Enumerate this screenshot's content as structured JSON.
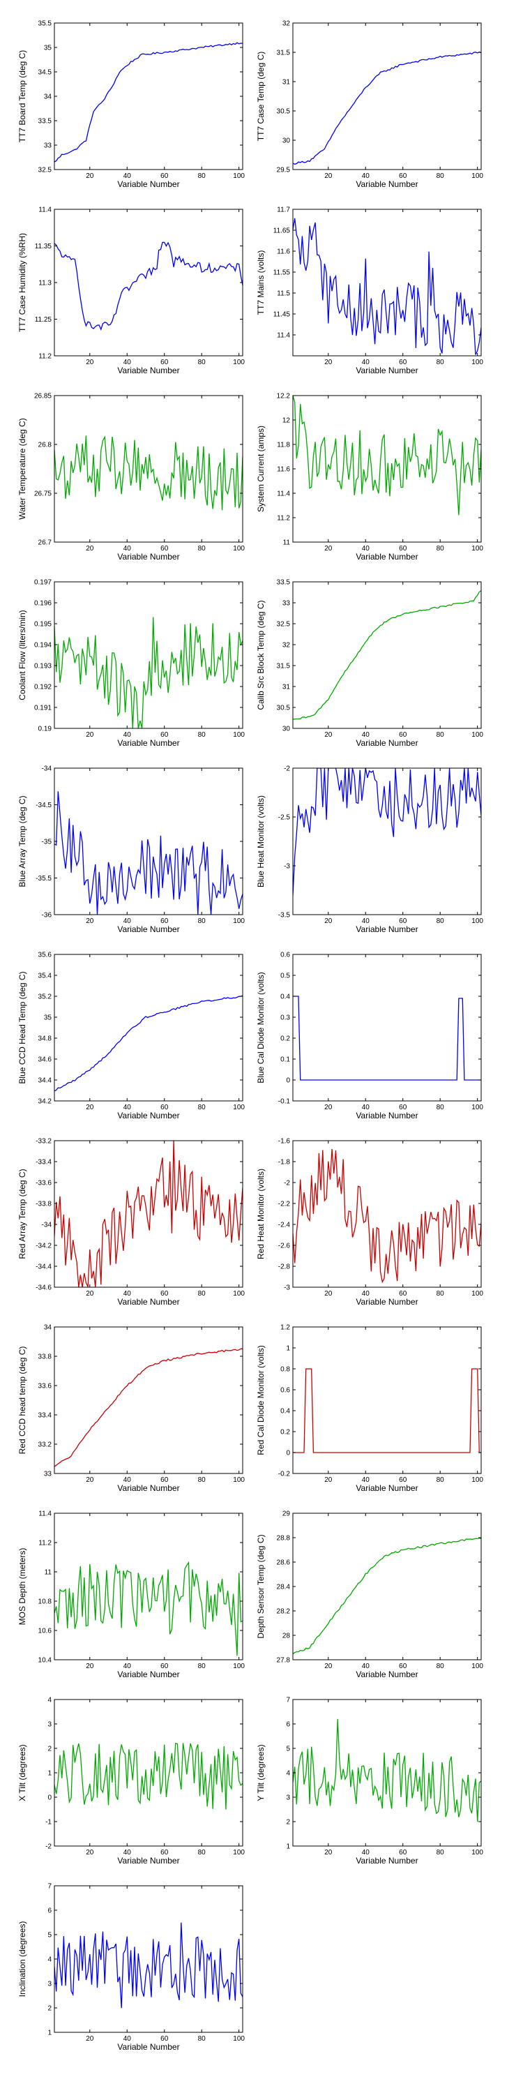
{
  "figure": {
    "xlabel": "Variable Number"
  },
  "colors": {
    "blue": "#0000ff",
    "green": "#00aa00",
    "red": "#cc0000",
    "axis": "#000000"
  },
  "chart_data": [
    {
      "type": "line",
      "ylabel": "TT7 Board Temp (deg C)",
      "xlim": [
        1,
        102
      ],
      "ylim": [
        32.5,
        35.5
      ],
      "xticks": [
        20,
        40,
        60,
        80,
        100
      ],
      "yticks": [
        "32.5",
        "33",
        "33.5",
        "34",
        "34.5",
        "35",
        "35.5"
      ],
      "color": "blue",
      "style": "smooth",
      "anchors": [
        [
          1,
          32.65
        ],
        [
          5,
          32.8
        ],
        [
          12,
          32.9
        ],
        [
          18,
          33.1
        ],
        [
          22,
          33.7
        ],
        [
          27,
          33.9
        ],
        [
          32,
          34.2
        ],
        [
          36,
          34.5
        ],
        [
          42,
          34.7
        ],
        [
          48,
          34.85
        ],
        [
          60,
          34.9
        ],
        [
          80,
          35.0
        ],
        [
          102,
          35.1
        ]
      ]
    },
    {
      "type": "line",
      "ylabel": "TT7 Case Temp (deg C)",
      "xlim": [
        1,
        102
      ],
      "ylim": [
        29.5,
        32
      ],
      "xticks": [
        20,
        40,
        60,
        80,
        100
      ],
      "yticks": [
        "29.5",
        "30",
        "30.5",
        "31",
        "31.5",
        "32"
      ],
      "color": "blue",
      "style": "smooth",
      "anchors": [
        [
          1,
          29.6
        ],
        [
          10,
          29.65
        ],
        [
          18,
          29.85
        ],
        [
          25,
          30.25
        ],
        [
          32,
          30.55
        ],
        [
          40,
          30.9
        ],
        [
          48,
          31.15
        ],
        [
          60,
          31.3
        ],
        [
          80,
          31.42
        ],
        [
          102,
          31.5
        ]
      ]
    },
    {
      "type": "line",
      "ylabel": "TT7 Case Humidity (%RH)",
      "xlim": [
        1,
        102
      ],
      "ylim": [
        11.2,
        11.4
      ],
      "xticks": [
        20,
        40,
        60,
        80,
        100
      ],
      "yticks": [
        "11.2",
        "11.25",
        "11.3",
        "11.35",
        "11.4"
      ],
      "color": "blue",
      "style": "step",
      "anchors": [
        [
          1,
          11.35
        ],
        [
          5,
          11.34
        ],
        [
          8,
          11.33
        ],
        [
          12,
          11.33
        ],
        [
          14,
          11.3
        ],
        [
          17,
          11.25
        ],
        [
          20,
          11.24
        ],
        [
          30,
          11.24
        ],
        [
          33,
          11.25
        ],
        [
          36,
          11.28
        ],
        [
          40,
          11.29
        ],
        [
          44,
          11.3
        ],
        [
          50,
          11.31
        ],
        [
          55,
          11.32
        ],
        [
          60,
          11.34
        ],
        [
          70,
          11.33
        ],
        [
          80,
          11.32
        ],
        [
          100,
          11.32
        ],
        [
          102,
          11.3
        ]
      ]
    },
    {
      "type": "line",
      "ylabel": "TT7 Mains  (volts)",
      "xlim": [
        1,
        102
      ],
      "ylim": [
        11.35,
        11.7
      ],
      "xticks": [
        20,
        40,
        60,
        80,
        100
      ],
      "yticks": [
        "11.4",
        "11.45",
        "11.5",
        "11.55",
        "11.6",
        "11.65",
        "11.7"
      ],
      "color": "blue",
      "style": "noisy",
      "anchors": [
        [
          1,
          11.6
        ],
        [
          8,
          11.6
        ],
        [
          12,
          11.65
        ],
        [
          18,
          11.52
        ],
        [
          25,
          11.47
        ],
        [
          35,
          11.46
        ],
        [
          50,
          11.44
        ],
        [
          65,
          11.45
        ],
        [
          80,
          11.43
        ],
        [
          102,
          11.42
        ]
      ]
    },
    {
      "type": "line",
      "ylabel": "Water Temperature (deg C)",
      "xlim": [
        1,
        102
      ],
      "ylim": [
        26.7,
        26.85
      ],
      "xticks": [
        20,
        40,
        60,
        80,
        100
      ],
      "yticks": [
        "26.7",
        "26.75",
        "26.8",
        "26.85"
      ],
      "color": "green",
      "style": "noisy",
      "anchors": [
        [
          1,
          26.77
        ],
        [
          25,
          26.78
        ],
        [
          50,
          26.77
        ],
        [
          75,
          26.77
        ],
        [
          102,
          26.76
        ]
      ]
    },
    {
      "type": "line",
      "ylabel": "System Current (amps)",
      "xlim": [
        1,
        102
      ],
      "ylim": [
        11,
        12.2
      ],
      "xticks": [
        20,
        40,
        60,
        80,
        100
      ],
      "yticks": [
        "11",
        "11.2",
        "11.4",
        "11.6",
        "11.8",
        "12",
        "12.2"
      ],
      "color": "green",
      "style": "noisy",
      "anchors": [
        [
          1,
          12.0
        ],
        [
          10,
          11.7
        ],
        [
          30,
          11.65
        ],
        [
          60,
          11.65
        ],
        [
          90,
          11.7
        ],
        [
          102,
          11.6
        ]
      ]
    },
    {
      "type": "line",
      "ylabel": "Coolant Flow (liters/min)",
      "xlim": [
        1,
        102
      ],
      "ylim": [
        0.19,
        0.197
      ],
      "xticks": [
        20,
        40,
        60,
        80,
        100
      ],
      "yticks": [
        "0.19",
        "0.191",
        "0.192",
        "0.193",
        "0.194",
        "0.195",
        "0.196",
        "0.197"
      ],
      "color": "green",
      "style": "noisy",
      "anchors": [
        [
          1,
          0.1935
        ],
        [
          20,
          0.193
        ],
        [
          35,
          0.192
        ],
        [
          45,
          0.1905
        ],
        [
          55,
          0.193
        ],
        [
          70,
          0.1935
        ],
        [
          102,
          0.1935
        ]
      ]
    },
    {
      "type": "line",
      "ylabel": "Calib Src Block Temp (deg C)",
      "xlim": [
        1,
        102
      ],
      "ylim": [
        30,
        33.5
      ],
      "xticks": [
        20,
        40,
        60,
        80,
        100
      ],
      "yticks": [
        "30",
        "30.5",
        "31",
        "31.5",
        "32",
        "32.5",
        "33",
        "33.5"
      ],
      "color": "green",
      "style": "smooth",
      "anchors": [
        [
          1,
          30.2
        ],
        [
          12,
          30.3
        ],
        [
          20,
          30.7
        ],
        [
          28,
          31.3
        ],
        [
          36,
          31.8
        ],
        [
          44,
          32.3
        ],
        [
          52,
          32.6
        ],
        [
          62,
          32.75
        ],
        [
          80,
          32.9
        ],
        [
          98,
          33.05
        ],
        [
          102,
          33.3
        ]
      ]
    },
    {
      "type": "line",
      "ylabel": "Blue Array Temp (deg C)",
      "xlim": [
        1,
        102
      ],
      "ylim": [
        -36,
        -34
      ],
      "xticks": [
        20,
        40,
        60,
        80,
        100
      ],
      "yticks": [
        "-36",
        "-35.5",
        "-35",
        "-34.5",
        "-34"
      ],
      "color": "blue",
      "style": "noisy",
      "anchors": [
        [
          1,
          -34.6
        ],
        [
          5,
          -34.9
        ],
        [
          12,
          -35.1
        ],
        [
          18,
          -35.4
        ],
        [
          25,
          -35.6
        ],
        [
          35,
          -35.55
        ],
        [
          45,
          -35.4
        ],
        [
          60,
          -35.35
        ],
        [
          80,
          -35.4
        ],
        [
          102,
          -35.45
        ]
      ]
    },
    {
      "type": "line",
      "ylabel": "Blue Heat Monitor (volts)",
      "xlim": [
        1,
        102
      ],
      "ylim": [
        -3.5,
        -2
      ],
      "xticks": [
        20,
        40,
        60,
        80,
        100
      ],
      "yticks": [
        "-3.5",
        "-3",
        "-2.5",
        "-2"
      ],
      "color": "blue",
      "style": "noisy",
      "anchors": [
        [
          1,
          -3.0
        ],
        [
          5,
          -2.6
        ],
        [
          12,
          -2.3
        ],
        [
          18,
          -2.05
        ],
        [
          25,
          -2.0
        ],
        [
          35,
          -2.1
        ],
        [
          45,
          -2.25
        ],
        [
          60,
          -2.3
        ],
        [
          80,
          -2.3
        ],
        [
          102,
          -2.25
        ]
      ]
    },
    {
      "type": "line",
      "ylabel": "Blue CCD Head Temp (deg C)",
      "xlim": [
        1,
        102
      ],
      "ylim": [
        34.2,
        35.6
      ],
      "xticks": [
        20,
        40,
        60,
        80,
        100
      ],
      "yticks": [
        "34.2",
        "34.4",
        "34.6",
        "34.8",
        "35",
        "35.2",
        "35.4",
        "35.6"
      ],
      "color": "blue",
      "style": "smooth",
      "anchors": [
        [
          1,
          34.3
        ],
        [
          12,
          34.4
        ],
        [
          20,
          34.5
        ],
        [
          30,
          34.65
        ],
        [
          40,
          34.85
        ],
        [
          50,
          35.0
        ],
        [
          60,
          35.05
        ],
        [
          80,
          35.15
        ],
        [
          102,
          35.2
        ]
      ]
    },
    {
      "type": "line",
      "ylabel": "Blue Cal Diode Monitor (volts)",
      "xlim": [
        1,
        102
      ],
      "ylim": [
        -0.1,
        0.6
      ],
      "xticks": [
        20,
        40,
        60,
        80,
        100
      ],
      "yticks": [
        "-0.1",
        "0",
        "0.1",
        "0.2",
        "0.3",
        "0.4",
        "0.5",
        "0.6"
      ],
      "color": "blue",
      "style": "pulse",
      "anchors": [
        [
          1,
          0.4
        ],
        [
          4,
          0.4
        ],
        [
          5,
          0.0
        ],
        [
          89,
          0.0
        ],
        [
          90,
          0.39
        ],
        [
          92,
          0.39
        ],
        [
          93,
          0.0
        ],
        [
          102,
          0.0
        ]
      ]
    },
    {
      "type": "line",
      "ylabel": "Red Array Temp (deg C)",
      "xlim": [
        1,
        102
      ],
      "ylim": [
        -34.6,
        -33.2
      ],
      "xticks": [
        20,
        40,
        60,
        80,
        100
      ],
      "yticks": [
        "-34.6",
        "-34.4",
        "-34.2",
        "-34",
        "-33.8",
        "-33.6",
        "-33.4",
        "-33.2"
      ],
      "color": "red",
      "style": "noisy",
      "anchors": [
        [
          1,
          -33.9
        ],
        [
          8,
          -34.2
        ],
        [
          15,
          -34.45
        ],
        [
          20,
          -34.5
        ],
        [
          28,
          -34.2
        ],
        [
          40,
          -33.95
        ],
        [
          55,
          -33.75
        ],
        [
          68,
          -33.6
        ],
        [
          80,
          -33.85
        ],
        [
          102,
          -33.95
        ]
      ]
    },
    {
      "type": "line",
      "ylabel": "Red Heat Monitor (volts)",
      "xlim": [
        1,
        102
      ],
      "ylim": [
        -3,
        -1.6
      ],
      "xticks": [
        20,
        40,
        60,
        80,
        100
      ],
      "yticks": [
        "-3",
        "-2.8",
        "-2.6",
        "-2.4",
        "-2.2",
        "-2",
        "-1.8",
        "-1.6"
      ],
      "color": "red",
      "style": "noisy",
      "anchors": [
        [
          1,
          -2.3
        ],
        [
          10,
          -2.15
        ],
        [
          18,
          -1.9
        ],
        [
          25,
          -2.0
        ],
        [
          35,
          -2.3
        ],
        [
          45,
          -2.65
        ],
        [
          55,
          -2.7
        ],
        [
          70,
          -2.6
        ],
        [
          85,
          -2.5
        ],
        [
          102,
          -2.4
        ]
      ]
    },
    {
      "type": "line",
      "ylabel": "Red CCD head temp (deg C)",
      "xlim": [
        1,
        102
      ],
      "ylim": [
        33,
        34
      ],
      "xticks": [
        20,
        40,
        60,
        80,
        100
      ],
      "yticks": [
        "33",
        "33.2",
        "33.4",
        "33.6",
        "33.8",
        "34"
      ],
      "color": "red",
      "style": "smooth",
      "anchors": [
        [
          1,
          33.05
        ],
        [
          10,
          33.12
        ],
        [
          20,
          33.3
        ],
        [
          30,
          33.45
        ],
        [
          40,
          33.6
        ],
        [
          50,
          33.72
        ],
        [
          60,
          33.77
        ],
        [
          80,
          33.82
        ],
        [
          102,
          33.85
        ]
      ]
    },
    {
      "type": "line",
      "ylabel": "Red Cal Diode Monitor (volts)",
      "xlim": [
        1,
        102
      ],
      "ylim": [
        -0.2,
        1.2
      ],
      "xticks": [
        20,
        40,
        60,
        80,
        100
      ],
      "yticks": [
        "-0.2",
        "0",
        "0.2",
        "0.4",
        "0.6",
        "0.8",
        "1",
        "1.2"
      ],
      "color": "red",
      "style": "pulse",
      "anchors": [
        [
          1,
          0.0
        ],
        [
          7,
          0.0
        ],
        [
          8,
          0.8
        ],
        [
          11,
          0.8
        ],
        [
          12,
          0.0
        ],
        [
          96,
          0.0
        ],
        [
          97,
          0.8
        ],
        [
          100,
          0.8
        ],
        [
          101,
          0.0
        ],
        [
          102,
          0.0
        ]
      ]
    },
    {
      "type": "line",
      "ylabel": "MOS Depth  (meters)",
      "xlim": [
        1,
        102
      ],
      "ylim": [
        10.4,
        11.4
      ],
      "xticks": [
        20,
        40,
        60,
        80,
        100
      ],
      "yticks": [
        "10.4",
        "10.6",
        "10.8",
        "11",
        "11.2",
        "11.4"
      ],
      "color": "green",
      "style": "noisy",
      "anchors": [
        [
          1,
          10.8
        ],
        [
          25,
          10.85
        ],
        [
          50,
          10.8
        ],
        [
          75,
          10.85
        ],
        [
          102,
          10.8
        ]
      ]
    },
    {
      "type": "line",
      "ylabel": "Depth Sensor Temp (deg C)",
      "xlim": [
        1,
        102
      ],
      "ylim": [
        27.8,
        29
      ],
      "xticks": [
        20,
        40,
        60,
        80,
        100
      ],
      "yticks": [
        "27.8",
        "28",
        "28.2",
        "28.4",
        "28.6",
        "28.8",
        "29"
      ],
      "color": "green",
      "style": "smooth",
      "anchors": [
        [
          1,
          27.85
        ],
        [
          10,
          27.9
        ],
        [
          20,
          28.1
        ],
        [
          30,
          28.3
        ],
        [
          40,
          28.5
        ],
        [
          50,
          28.65
        ],
        [
          60,
          28.7
        ],
        [
          80,
          28.75
        ],
        [
          102,
          28.8
        ]
      ]
    },
    {
      "type": "line",
      "ylabel": "X Tilt  (degrees)",
      "xlim": [
        1,
        102
      ],
      "ylim": [
        -2,
        4
      ],
      "xticks": [
        20,
        40,
        60,
        80,
        100
      ],
      "yticks": [
        "-2",
        "-1",
        "0",
        "1",
        "2",
        "3",
        "4"
      ],
      "color": "green",
      "style": "noisy",
      "anchors": [
        [
          1,
          0.8
        ],
        [
          25,
          1.0
        ],
        [
          50,
          0.8
        ],
        [
          75,
          0.9
        ],
        [
          102,
          0.7
        ]
      ]
    },
    {
      "type": "line",
      "ylabel": "Y Tilt  (degrees)",
      "xlim": [
        1,
        102
      ],
      "ylim": [
        1,
        7
      ],
      "xticks": [
        20,
        40,
        60,
        80,
        100
      ],
      "yticks": [
        "1",
        "2",
        "3",
        "4",
        "5",
        "6",
        "7"
      ],
      "color": "green",
      "style": "noisy",
      "anchors": [
        [
          1,
          3.8
        ],
        [
          25,
          3.6
        ],
        [
          50,
          3.5
        ],
        [
          75,
          3.4
        ],
        [
          102,
          3.3
        ]
      ]
    },
    {
      "type": "line",
      "ylabel": "Inclination  (degrees)",
      "xlim": [
        1,
        102
      ],
      "ylim": [
        1,
        7
      ],
      "xticks": [
        20,
        40,
        60,
        80,
        100
      ],
      "yticks": [
        "1",
        "2",
        "3",
        "4",
        "5",
        "6",
        "7"
      ],
      "color": "blue",
      "style": "noisy",
      "anchors": [
        [
          1,
          3.8
        ],
        [
          25,
          3.8
        ],
        [
          50,
          3.7
        ],
        [
          75,
          3.6
        ],
        [
          102,
          3.4
        ]
      ]
    }
  ]
}
